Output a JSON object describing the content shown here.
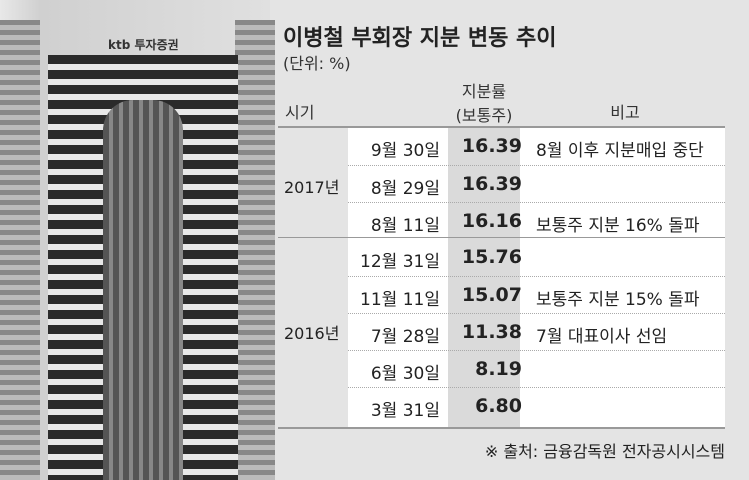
{
  "photo": {
    "logo": "ktb 투자증권"
  },
  "title": "이병철 부회장 지분 변동 추이",
  "unit": "(단위: %)",
  "headers": {
    "period": "시기",
    "rate_1": "지분률",
    "rate_2": "(보통주)",
    "note": "비고"
  },
  "groups": [
    {
      "year": "2017년"
    },
    {
      "year": "2016년"
    }
  ],
  "rows": [
    {
      "date": "9월 30일",
      "value": "16.39",
      "note": "8월 이후 지분매입 중단"
    },
    {
      "date": "8월 29일",
      "value": "16.39",
      "note": ""
    },
    {
      "date": "8월 11일",
      "value": "16.16",
      "note": "보통주 지분 16% 돌파"
    },
    {
      "date": "12월 31일",
      "value": "15.76",
      "note": ""
    },
    {
      "date": "11월 11일",
      "value": "15.07",
      "note": "보통주 지분 15% 돌파"
    },
    {
      "date": "7월 28일",
      "value": "11.38",
      "note": "7월 대표이사 선임"
    },
    {
      "date": "6월 30일",
      "value": "8.19",
      "note": ""
    },
    {
      "date": "3월 31일",
      "value": "6.80",
      "note": ""
    }
  ],
  "source": "※ 출처: 금융감독원 전자공시시스템"
}
